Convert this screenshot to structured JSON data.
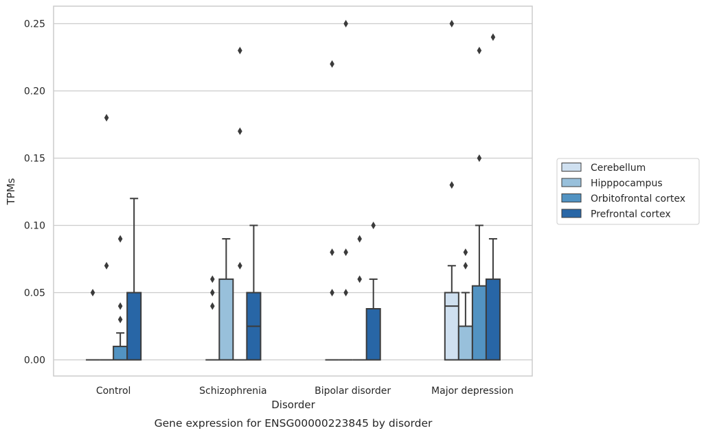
{
  "chart_data": {
    "type": "box",
    "categories": [
      "Control",
      "Schizophrenia",
      "Bipolar disorder",
      "Major depression"
    ],
    "xlabel": "Disorder",
    "ylabel": "TPMs",
    "caption": "Gene expression for ENSG00000223845 by disorder",
    "ylim": [
      -0.012,
      0.263
    ],
    "yticks": [
      0.0,
      0.05,
      0.1,
      0.15,
      0.2,
      0.25
    ],
    "ytick_labels": [
      "0.00",
      "0.05",
      "0.10",
      "0.15",
      "0.20",
      "0.25"
    ],
    "grid": "horizontal",
    "legend_position": "right",
    "series": [
      {
        "name": "Cerebellum",
        "color": "#cfe0f0",
        "boxes": [
          {
            "whisker_low": 0,
            "q1": 0,
            "median": 0,
            "q3": 0,
            "whisker_high": 0,
            "outliers": [
              0.05
            ]
          },
          {
            "whisker_low": 0,
            "q1": 0,
            "median": 0,
            "q3": 0,
            "whisker_high": 0,
            "outliers": [
              0.04,
              0.05,
              0.06
            ]
          },
          {
            "whisker_low": 0,
            "q1": 0,
            "median": 0,
            "q3": 0,
            "whisker_high": 0,
            "outliers": [
              0.05,
              0.08,
              0.22
            ]
          },
          {
            "whisker_low": 0,
            "q1": 0,
            "median": 0.04,
            "q3": 0.05,
            "whisker_high": 0.07,
            "outliers": [
              0.13,
              0.25
            ]
          }
        ]
      },
      {
        "name": "Hipppocampus",
        "color": "#98c0db",
        "boxes": [
          {
            "whisker_low": 0,
            "q1": 0,
            "median": 0,
            "q3": 0,
            "whisker_high": 0,
            "outliers": [
              0.07,
              0.18
            ]
          },
          {
            "whisker_low": 0,
            "q1": 0,
            "median": 0,
            "q3": 0.06,
            "whisker_high": 0.09,
            "outliers": []
          },
          {
            "whisker_low": 0,
            "q1": 0,
            "median": 0,
            "q3": 0,
            "whisker_high": 0,
            "outliers": [
              0.05,
              0.08,
              0.25
            ]
          },
          {
            "whisker_low": 0,
            "q1": 0,
            "median": 0,
            "q3": 0.025,
            "whisker_high": 0.05,
            "outliers": [
              0.07,
              0.08
            ]
          }
        ]
      },
      {
        "name": "Orbitofrontal cortex",
        "color": "#5293c2",
        "boxes": [
          {
            "whisker_low": 0,
            "q1": 0,
            "median": 0,
            "q3": 0.01,
            "whisker_high": 0.02,
            "outliers": [
              0.03,
              0.04,
              0.09
            ]
          },
          {
            "whisker_low": 0,
            "q1": 0,
            "median": 0,
            "q3": 0,
            "whisker_high": 0,
            "outliers": [
              0.07,
              0.17,
              0.23
            ]
          },
          {
            "whisker_low": 0,
            "q1": 0,
            "median": 0,
            "q3": 0,
            "whisker_high": 0,
            "outliers": [
              0.06,
              0.09
            ]
          },
          {
            "whisker_low": 0,
            "q1": 0,
            "median": 0,
            "q3": 0.055,
            "whisker_high": 0.1,
            "outliers": [
              0.15,
              0.23
            ]
          }
        ]
      },
      {
        "name": "Prefrontal cortex",
        "color": "#2866a6",
        "boxes": [
          {
            "whisker_low": 0,
            "q1": 0,
            "median": 0,
            "q3": 0.05,
            "whisker_high": 0.12,
            "outliers": []
          },
          {
            "whisker_low": 0,
            "q1": 0,
            "median": 0.025,
            "q3": 0.05,
            "whisker_high": 0.1,
            "outliers": []
          },
          {
            "whisker_low": 0,
            "q1": 0,
            "median": 0,
            "q3": 0.038,
            "whisker_high": 0.06,
            "outliers": [
              0.1
            ]
          },
          {
            "whisker_low": 0,
            "q1": 0,
            "median": 0,
            "q3": 0.06,
            "whisker_high": 0.09,
            "outliers": [
              0.24
            ]
          }
        ]
      }
    ]
  }
}
